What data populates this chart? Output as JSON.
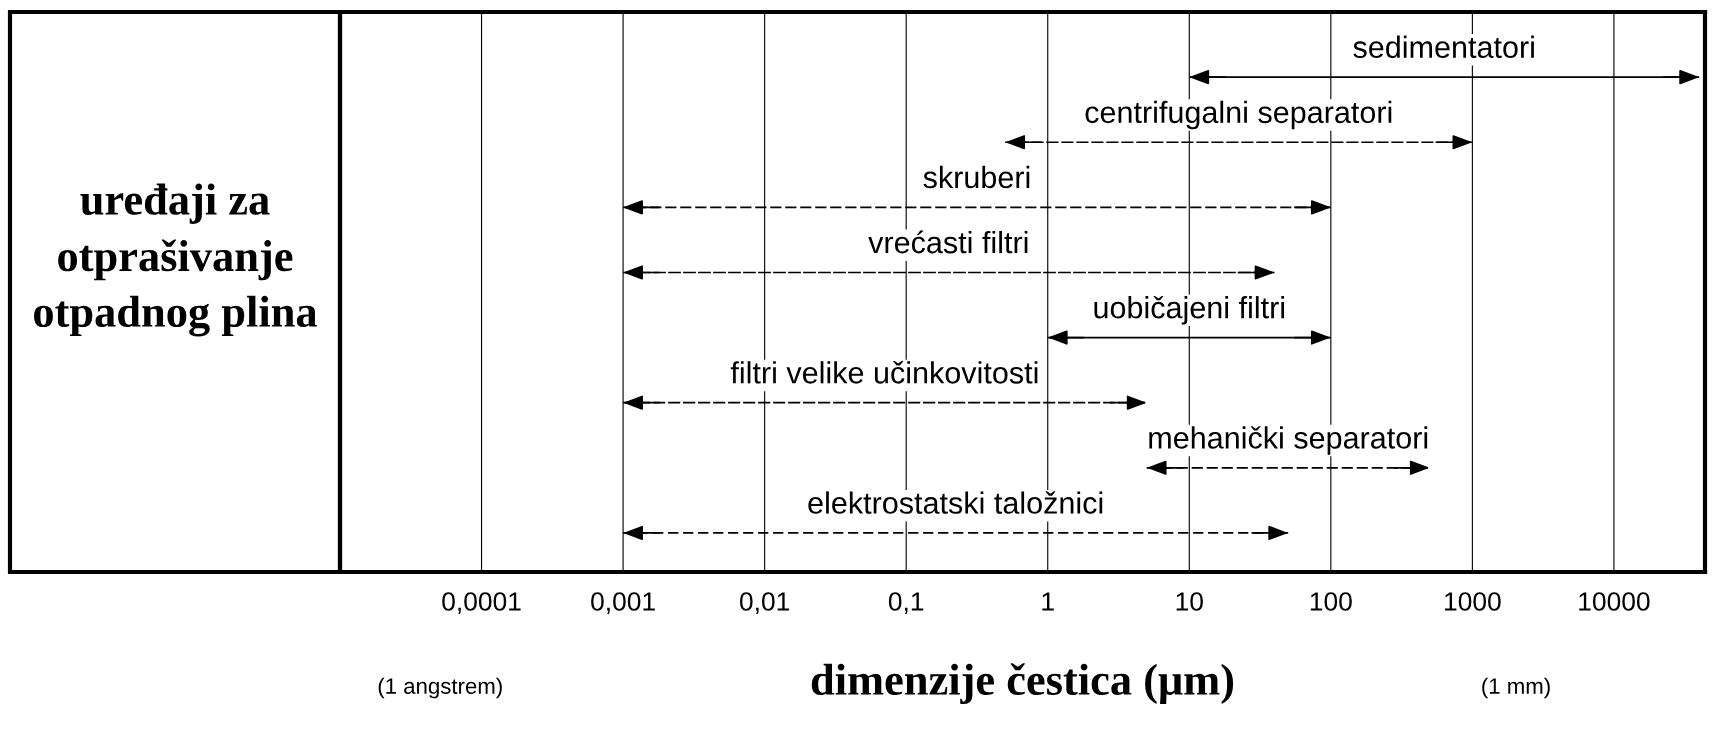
{
  "chart_data": {
    "type": "bar",
    "orientation": "horizontal",
    "ylabel": "uređaji za\notprašivanje\notpadnog plina",
    "xlabel": "dimenzije čestica (μm)",
    "categories": [
      "sedimentatori",
      "centrifugalni separatori",
      "skruberi",
      "vrećasti filtri",
      "uobičajeni filtri",
      "filtri velike učinkovitosti",
      "mehanički separatori",
      "elektrostatski taložnici"
    ],
    "series": [
      {
        "color": "#000000",
        "line_style": "solid",
        "base": [
          10,
          null,
          null,
          null,
          1,
          null,
          null,
          null
        ],
        "values": [
          39990,
          null,
          null,
          null,
          99,
          null,
          null,
          null
        ]
      },
      {
        "color": "#000000",
        "line_style": "dashed",
        "base": [
          null,
          0.5,
          0.001,
          0.001,
          null,
          0.001,
          5,
          0.001
        ],
        "values": [
          null,
          999.5,
          99.999,
          39.999,
          null,
          4.999,
          495,
          49.999
        ]
      }
    ],
    "log": "x",
    "xlim": [
      1e-05,
      44000
    ],
    "xticks": [
      {
        "value": 0.0001,
        "label": "0,0001"
      },
      {
        "value": 0.001,
        "label": "0,001"
      },
      {
        "value": 0.01,
        "label": "0,01"
      },
      {
        "value": 0.1,
        "label": "0,1"
      },
      1,
      10,
      100,
      1000,
      10000
    ],
    "grid": "x",
    "annotations": [
      "(1 angstrem)",
      "(1 mm)"
    ]
  }
}
